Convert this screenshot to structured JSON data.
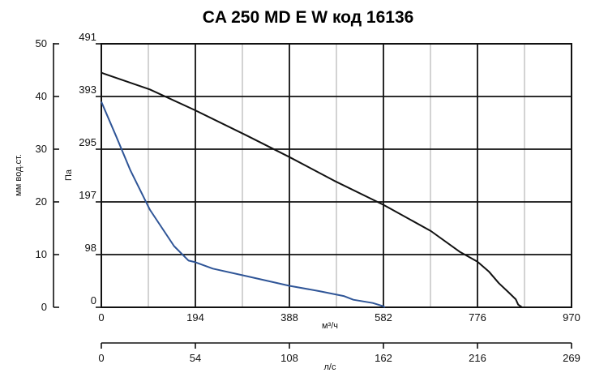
{
  "chart_data": {
    "type": "line",
    "title": "CA 250 MD E W код 16136",
    "grid": true,
    "x_axis": {
      "label": "м³/ч",
      "range": [
        0,
        970
      ],
      "ticks": [
        "0",
        "194",
        "388",
        "582",
        "776",
        "970"
      ]
    },
    "x2_axis": {
      "label": "л/с",
      "range": [
        0,
        269
      ],
      "ticks": [
        "0",
        "54",
        "108",
        "162",
        "216",
        "269"
      ]
    },
    "y_axis": {
      "label": "Па",
      "range": [
        0,
        491
      ],
      "ticks": [
        "0",
        "98",
        "197",
        "295",
        "393",
        "491"
      ]
    },
    "y2_axis": {
      "label": "мм вод.ст.",
      "range": [
        0,
        50
      ],
      "ticks": [
        "0",
        "10",
        "20",
        "30",
        "40",
        "50"
      ]
    },
    "series": [
      {
        "color": "#111111",
        "points": [
          [
            0,
            437
          ],
          [
            100,
            406
          ],
          [
            194,
            367
          ],
          [
            300,
            320
          ],
          [
            388,
            280
          ],
          [
            480,
            236
          ],
          [
            582,
            191
          ],
          [
            680,
            142
          ],
          [
            740,
            103
          ],
          [
            776,
            85
          ],
          [
            800,
            66
          ],
          [
            820,
            45
          ],
          [
            840,
            28
          ],
          [
            855,
            15
          ],
          [
            860,
            5
          ],
          [
            868,
            0
          ]
        ]
      },
      {
        "color": "#2f5597",
        "points": [
          [
            0,
            383
          ],
          [
            30,
            320
          ],
          [
            60,
            255
          ],
          [
            100,
            182
          ],
          [
            150,
            114
          ],
          [
            180,
            87
          ],
          [
            194,
            84
          ],
          [
            230,
            72
          ],
          [
            300,
            58
          ],
          [
            388,
            40
          ],
          [
            450,
            30
          ],
          [
            500,
            21
          ],
          [
            520,
            14
          ],
          [
            560,
            8
          ],
          [
            575,
            4
          ],
          [
            582,
            2
          ],
          [
            585,
            0
          ]
        ]
      }
    ]
  }
}
